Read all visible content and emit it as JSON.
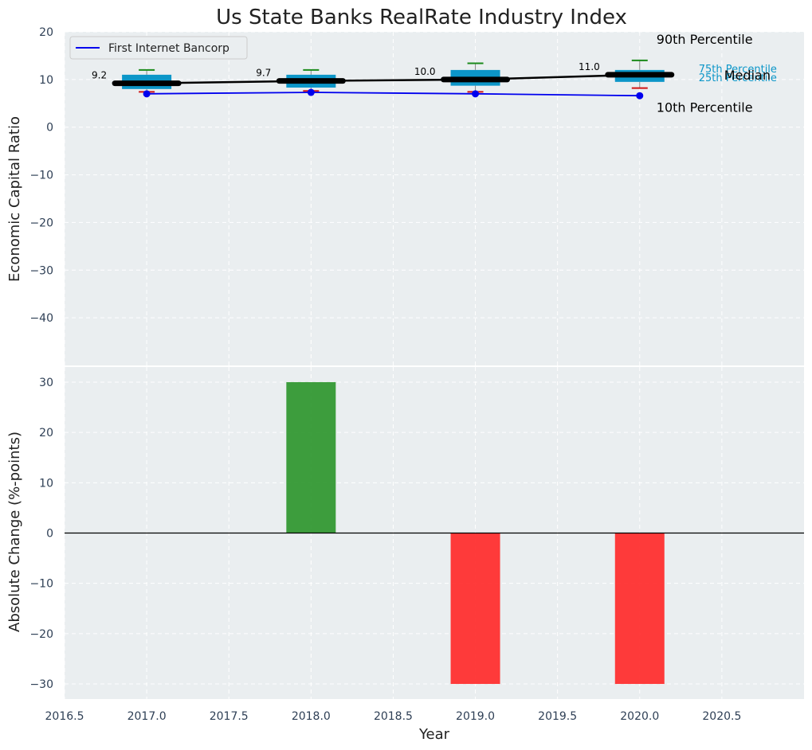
{
  "chart_data": {
    "title": "Us State Banks RealRate Industry Index",
    "xlabel": "Year",
    "x_ticks": [
      "2016.5",
      "2017.0",
      "2017.5",
      "2018.0",
      "2018.5",
      "2019.0",
      "2019.5",
      "2020.0",
      "2020.5"
    ],
    "xlim": [
      2016.5,
      2021.0
    ],
    "colors": {
      "plot_bg": "#eaeef0",
      "box": "#0c96c8",
      "whisker_top": "#1a8a1a",
      "whisker_bottom": "#d01515",
      "median_line": "#000000",
      "company_line": "#0000ee",
      "positive_bar": "#2e962e",
      "negative_bar": "#ff2a2a",
      "quartile_label": "#0c96c8"
    },
    "top": {
      "type": "box",
      "ylabel": "Economic Capital Ratio",
      "ylim": [
        -50,
        20
      ],
      "y_ticks": [
        "20",
        "10",
        "0",
        "−10",
        "−20",
        "−30",
        "−40"
      ],
      "years": [
        2017,
        2018,
        2019,
        2020
      ],
      "p10": [
        7.4,
        7.6,
        7.4,
        8.2
      ],
      "p25": [
        8.0,
        8.3,
        8.7,
        9.5
      ],
      "median": [
        9.2,
        9.7,
        10.0,
        11.0
      ],
      "p75": [
        11.0,
        11.0,
        12.0,
        12.0
      ],
      "p90": [
        12.0,
        12.0,
        13.4,
        14.0
      ],
      "median_labels": [
        "9.2",
        "9.7",
        "10.0",
        "11.0"
      ],
      "company": {
        "name": "First Internet Bancorp",
        "values": [
          7.0,
          7.3,
          7.0,
          6.6
        ]
      },
      "annotations": {
        "p90": "90th Percentile",
        "p75": "75th Percentile",
        "median": "Median",
        "p25": "25th Percentile",
        "p10": "10th Percentile"
      },
      "legend_position": "top-left"
    },
    "bottom": {
      "type": "bar",
      "ylabel": "Absolute Change (%-points)",
      "ylim": [
        -33,
        33
      ],
      "y_ticks": [
        "30",
        "20",
        "10",
        "0",
        "−10",
        "−20",
        "−30"
      ],
      "years": [
        2018,
        2019,
        2020
      ],
      "values": [
        30,
        -30,
        -30
      ]
    }
  }
}
